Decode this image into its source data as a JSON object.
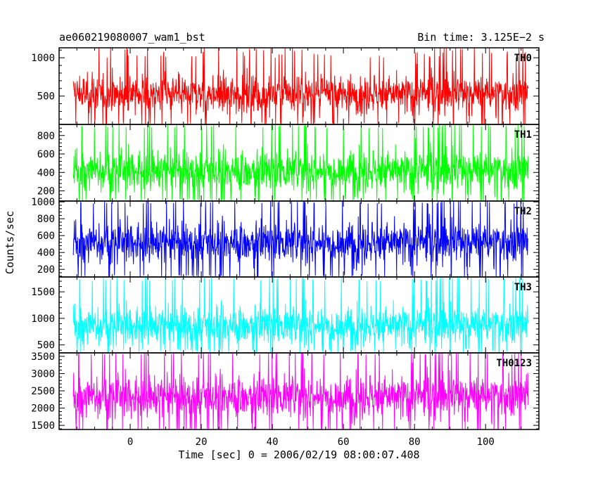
{
  "header": {
    "title": "ae060219080007_wam1_bst",
    "bin_time": "Bin time: 3.125E−2 s"
  },
  "axes": {
    "ylabel": "Counts/sec",
    "xlabel": "Time [sec] 0 = 2006/02/19 08:00:07.408"
  },
  "chart_data": {
    "type": "line",
    "title": "ae060219080007_wam1_bst",
    "subtitle": "Bin time: 3.125E−2 s",
    "xlabel": "Time [sec] 0 = 2006/02/19 08:00:07.408",
    "ylabel": "Counts/sec",
    "xlim": [
      -20,
      115
    ],
    "x_ticks": [
      0,
      20,
      40,
      60,
      80,
      100
    ],
    "x_data_range": [
      -16,
      112
    ],
    "bin_time_s": 0.03125,
    "panels": [
      {
        "name": "TH0",
        "color": "#ff0000",
        "ylim": [
          130,
          1130
        ],
        "y_ticks": [
          500,
          1000
        ],
        "mean": 530,
        "typical_low": 150,
        "typical_high": 1000
      },
      {
        "name": "TH1",
        "color": "#00ff00",
        "ylim": [
          90,
          920
        ],
        "y_ticks": [
          200,
          400,
          600,
          800
        ],
        "mean": 420,
        "typical_low": 110,
        "typical_high": 880
      },
      {
        "name": "TH2",
        "color": "#0000ff",
        "ylim": [
          110,
          1010
        ],
        "y_ticks": [
          200,
          400,
          600,
          800,
          1000
        ],
        "mean": 520,
        "typical_low": 130,
        "typical_high": 980
      },
      {
        "name": "TH3",
        "color": "#00ffff",
        "ylim": [
          350,
          1780
        ],
        "y_ticks": [
          500,
          1000,
          1500
        ],
        "mean": 870,
        "typical_low": 420,
        "typical_high": 1700
      },
      {
        "name": "TH0123",
        "color": "#ff00ff",
        "ylim": [
          1380,
          3600
        ],
        "y_ticks": [
          1500,
          2000,
          2500,
          3000,
          3500
        ],
        "mean": 2340,
        "typical_low": 1400,
        "typical_high": 3550
      }
    ]
  }
}
